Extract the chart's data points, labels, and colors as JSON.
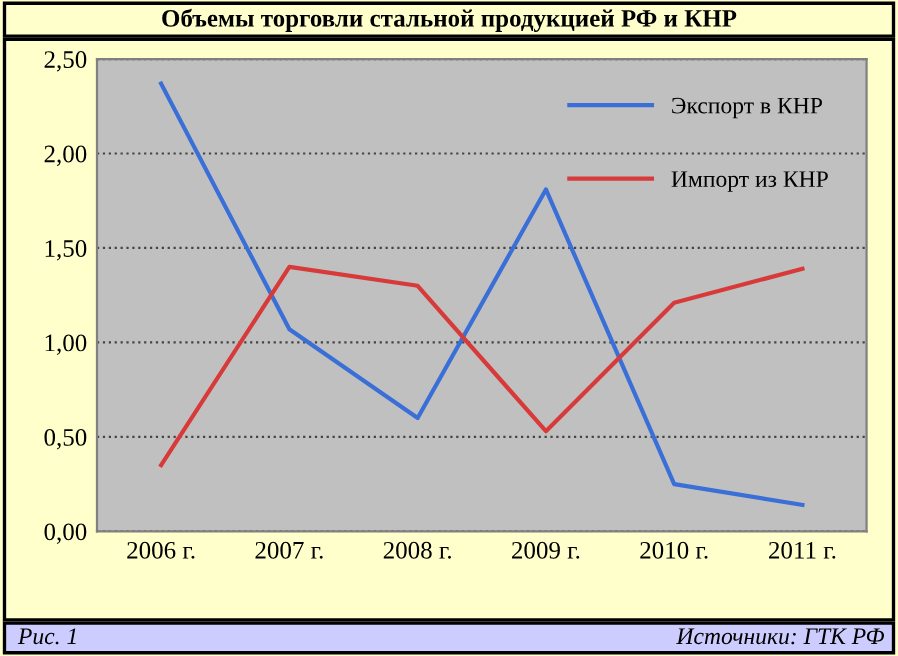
{
  "chart_data": {
    "type": "line",
    "title": "Объемы торговли стальной продукцией РФ и КНР",
    "categories": [
      "2006 г.",
      "2007 г.",
      "2008 г.",
      "2009 г.",
      "2010 г.",
      "2011 г."
    ],
    "series": [
      {
        "name": "Экспорт в КНР",
        "color": "#3a6fd8",
        "values": [
          2.37,
          1.07,
          0.6,
          1.81,
          0.25,
          0.14
        ]
      },
      {
        "name": "Импорт из КНР",
        "color": "#d83a3a",
        "values": [
          0.35,
          1.4,
          1.3,
          0.53,
          1.21,
          1.39
        ]
      }
    ],
    "ylim": [
      0,
      2.5
    ],
    "yticks": [
      {
        "value": 0,
        "label": "0,00"
      },
      {
        "value": 0.5,
        "label": "0,50"
      },
      {
        "value": 1,
        "label": "1,00"
      },
      {
        "value": 1.5,
        "label": "1,50"
      },
      {
        "value": 2,
        "label": "2,00"
      },
      {
        "value": 2.5,
        "label": "2,50"
      }
    ],
    "grid": "y",
    "legend": "top right",
    "marker": "none",
    "line_style": "solid",
    "annotations": [
      "Рис. 1",
      "Источники: ГТК РФ"
    ]
  }
}
